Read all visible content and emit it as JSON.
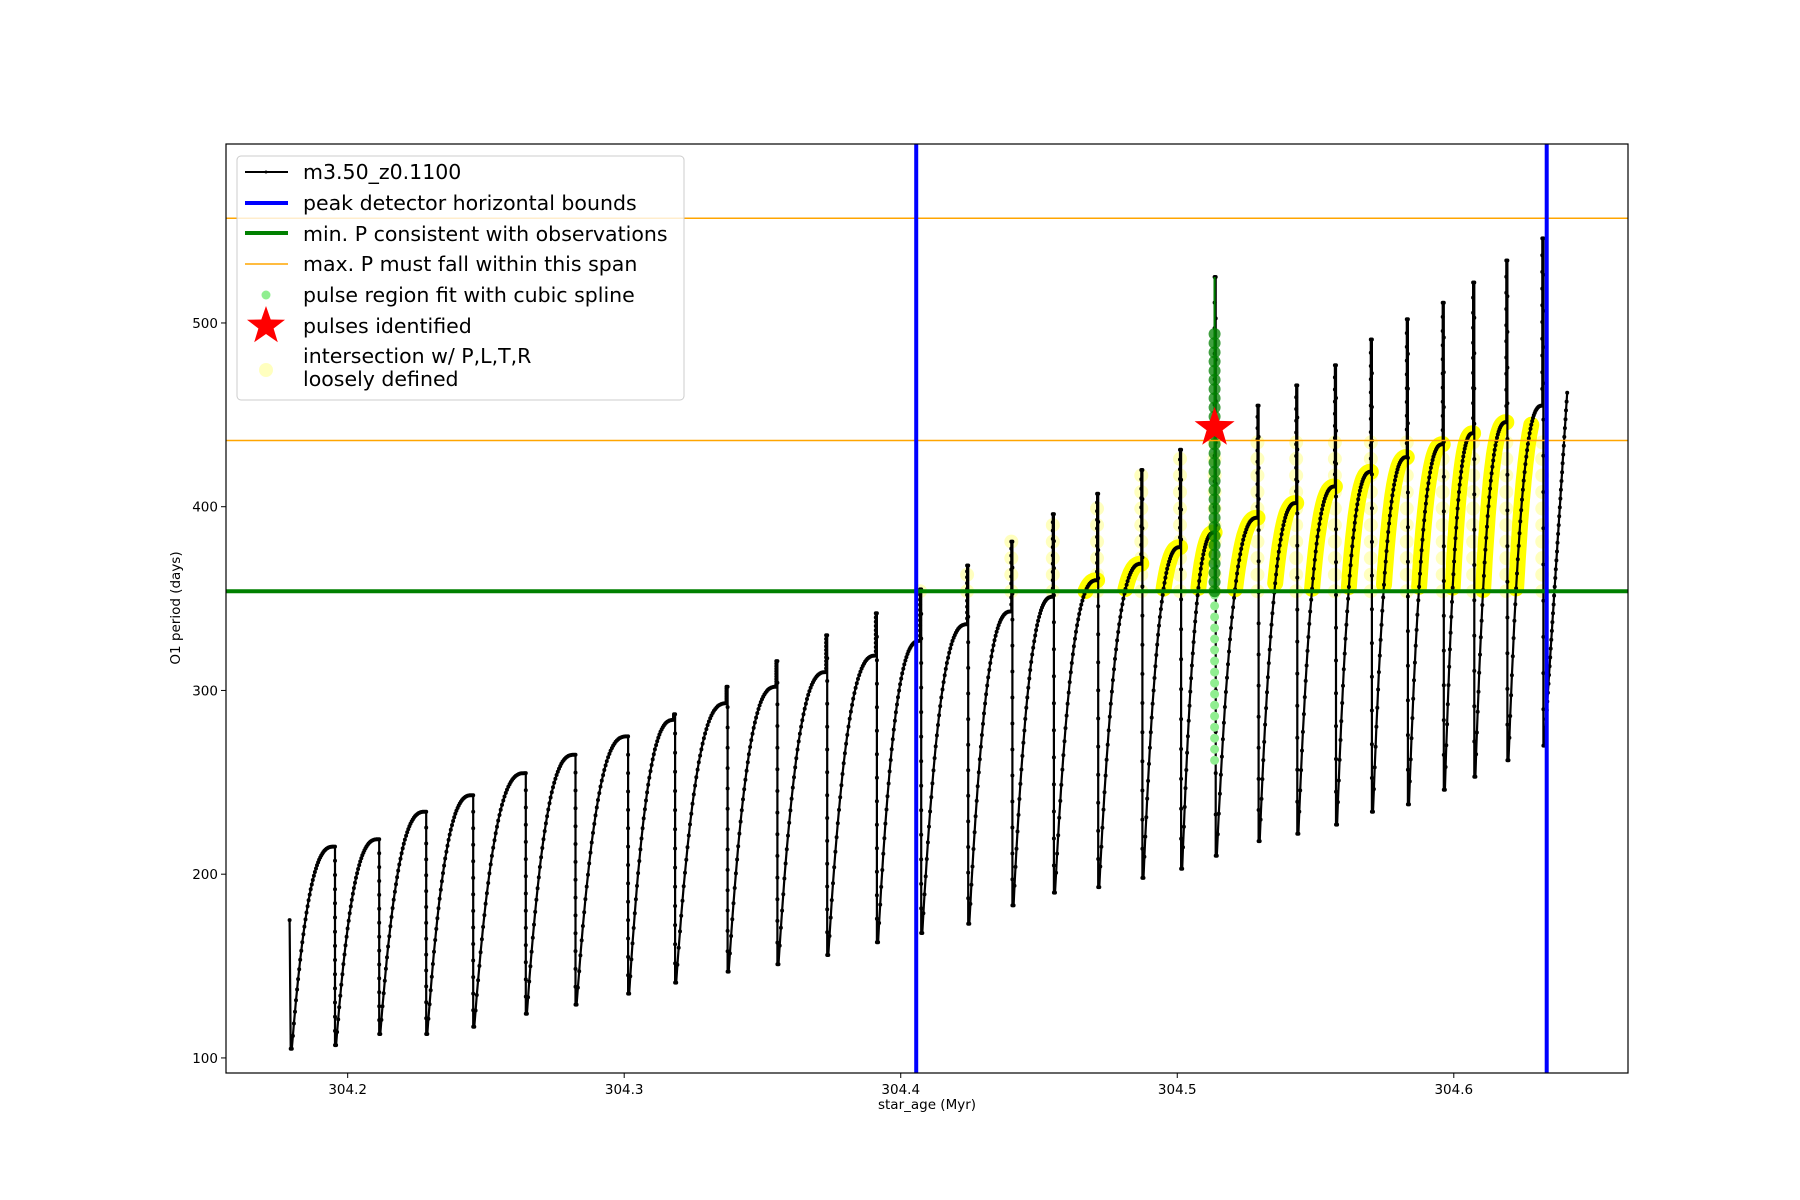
{
  "chart_data": {
    "type": "line",
    "xlabel": "star_age (Myr)",
    "ylabel": "O1 period (days)",
    "xlim": [
      304.156,
      304.663
    ],
    "ylim": [
      91.8,
      597.4
    ],
    "xticks": [
      "304.2",
      "304.3",
      "304.4",
      "304.5",
      "304.6"
    ],
    "yticks": [
      "100",
      "200",
      "300",
      "400",
      "500"
    ],
    "grid": false,
    "legend_position": "top-left",
    "legend": [
      {
        "label": "m3.50_z0.1100",
        "color": "#000000",
        "kind": "line-marker"
      },
      {
        "label": "peak detector horizontal bounds",
        "color": "#0000ff",
        "kind": "thick-line"
      },
      {
        "label": "min. P consistent with observations",
        "color": "#008000",
        "kind": "thick-line"
      },
      {
        "label": "max. P must fall within this span",
        "color": "#ffa500",
        "kind": "thin-line"
      },
      {
        "label": "pulse region fit with cubic spline",
        "color": "#90ee90",
        "kind": "dot"
      },
      {
        "label": "pulses identified",
        "color": "#ff0000",
        "kind": "star"
      },
      {
        "label": "intersection w/ P,L,T,R",
        "label2": "loosely defined",
        "color": "#ffff00",
        "kind": "circle"
      }
    ],
    "series": {
      "name": "m3.50_z0.1100",
      "start": {
        "age": 304.179,
        "period": 175
      },
      "end": {
        "age": 304.641,
        "period": 462
      },
      "pulse_ages": [
        304.179,
        304.195,
        304.211,
        304.228,
        304.245,
        304.264,
        304.282,
        304.301,
        304.318,
        304.337,
        304.355,
        304.373,
        304.391,
        304.407,
        304.424,
        304.44,
        304.455,
        304.471,
        304.487,
        304.501,
        304.5135,
        304.529,
        304.543,
        304.557,
        304.57,
        304.583,
        304.596,
        304.607,
        304.619,
        304.632
      ],
      "peak_before_pulse": [
        178,
        215,
        219,
        234,
        243,
        255,
        265,
        275,
        284,
        293,
        302,
        310,
        319,
        327,
        336,
        343,
        351,
        360,
        369,
        378,
        386,
        394,
        402,
        411,
        419,
        427,
        434,
        440,
        446,
        455
      ],
      "spike_max": [
        178,
        215,
        219,
        234,
        243,
        255,
        265,
        275,
        287,
        302,
        316,
        330,
        342,
        355,
        368,
        381,
        396,
        407,
        420,
        431,
        525,
        455,
        466,
        477,
        491,
        502,
        511,
        522,
        534,
        546
      ],
      "min_after_pulse": [
        105,
        107,
        113,
        113,
        117,
        124,
        129,
        135,
        141,
        147,
        151,
        156,
        163,
        168,
        173,
        183,
        190,
        193,
        198,
        203,
        210,
        218,
        222,
        227,
        234,
        238,
        246,
        253,
        262,
        270
      ]
    },
    "peak_detector_bounds": [
      304.4056,
      304.6336
    ],
    "min_period_observed": 354,
    "max_period_span": [
      436,
      557
    ],
    "identified_pulse": {
      "age": 304.5135,
      "period": 443
    },
    "spline_region": {
      "age": 304.5135,
      "period_range": [
        262,
        496
      ]
    },
    "colors": {
      "series": "#000000",
      "bounds": "#0000ff",
      "min_p": "#008000",
      "max_p": "#ffa500",
      "spline": "#90ee90",
      "spline_dark": "#008000",
      "star": "#ff0000",
      "intersection": "#ffff00"
    }
  }
}
